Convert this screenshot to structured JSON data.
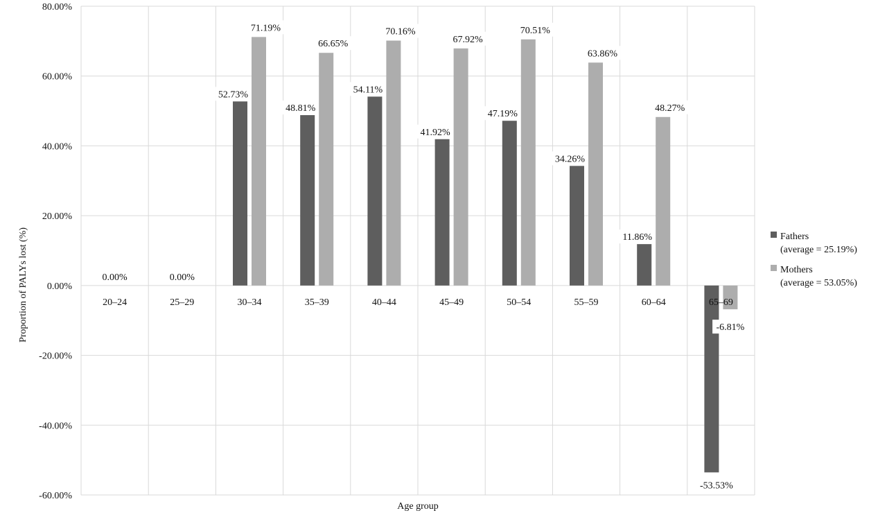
{
  "chart_data": {
    "type": "bar",
    "title": "",
    "xlabel": "Age group",
    "ylabel": "Proportion of PALYs lost (%)",
    "ylim": [
      -60,
      80
    ],
    "ytick_step": 20,
    "ytick_labels": [
      "80.00%",
      "60.00%",
      "40.00%",
      "20.00%",
      "0.00%",
      "-20.00%",
      "-40.00%",
      "-60.00%"
    ],
    "grid": true,
    "legend_position": "right",
    "categories": [
      "20–24",
      "25–29",
      "30–34",
      "35–39",
      "40–44",
      "45–49",
      "50–54",
      "55–59",
      "60–64",
      "65–69"
    ],
    "series": [
      {
        "name": "Fathers",
        "legend_note": "(average = 25.19%)",
        "color": "#5e5e5e",
        "values": [
          0,
          0,
          52.73,
          48.81,
          54.11,
          41.92,
          47.19,
          34.26,
          11.86,
          -53.53
        ],
        "labels": [
          "0.00%",
          "0.00%",
          "52.73%",
          "48.81%",
          "54.11%",
          "41.92%",
          "47.19%",
          "34.26%",
          "11.86%",
          "-53.53%"
        ]
      },
      {
        "name": "Mothers",
        "legend_note": "(average = 53.05%)",
        "color": "#adadad",
        "values": [
          0,
          0,
          71.19,
          66.65,
          70.16,
          67.92,
          70.51,
          63.86,
          48.27,
          -6.81
        ],
        "labels": [
          "",
          "",
          "71.19%",
          "66.65%",
          "70.16%",
          "67.92%",
          "70.51%",
          "63.86%",
          "48.27%",
          "-6.81%"
        ]
      }
    ]
  }
}
